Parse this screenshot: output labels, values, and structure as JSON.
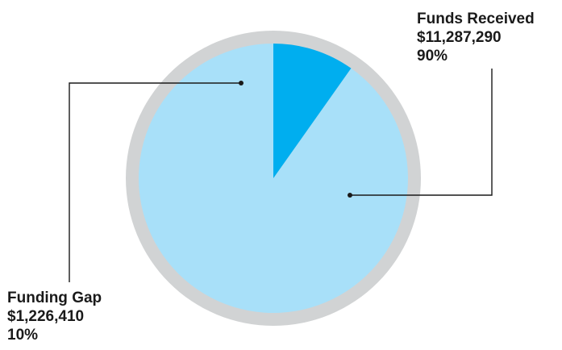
{
  "chart_data": {
    "type": "pie",
    "start_angle_deg": 0,
    "direction": "counterclockwise",
    "rim_color": "#d1d3d4",
    "slices": [
      {
        "name": "Funds Received",
        "value": 11287290,
        "value_label": "$11,287,290",
        "percent": 90,
        "percent_label": "90%",
        "color": "#a8e0f9"
      },
      {
        "name": "Funding Gap",
        "value": 1226410,
        "value_label": "$1,226,410",
        "percent": 10,
        "percent_label": "10%",
        "color": "#00aeef"
      }
    ]
  }
}
